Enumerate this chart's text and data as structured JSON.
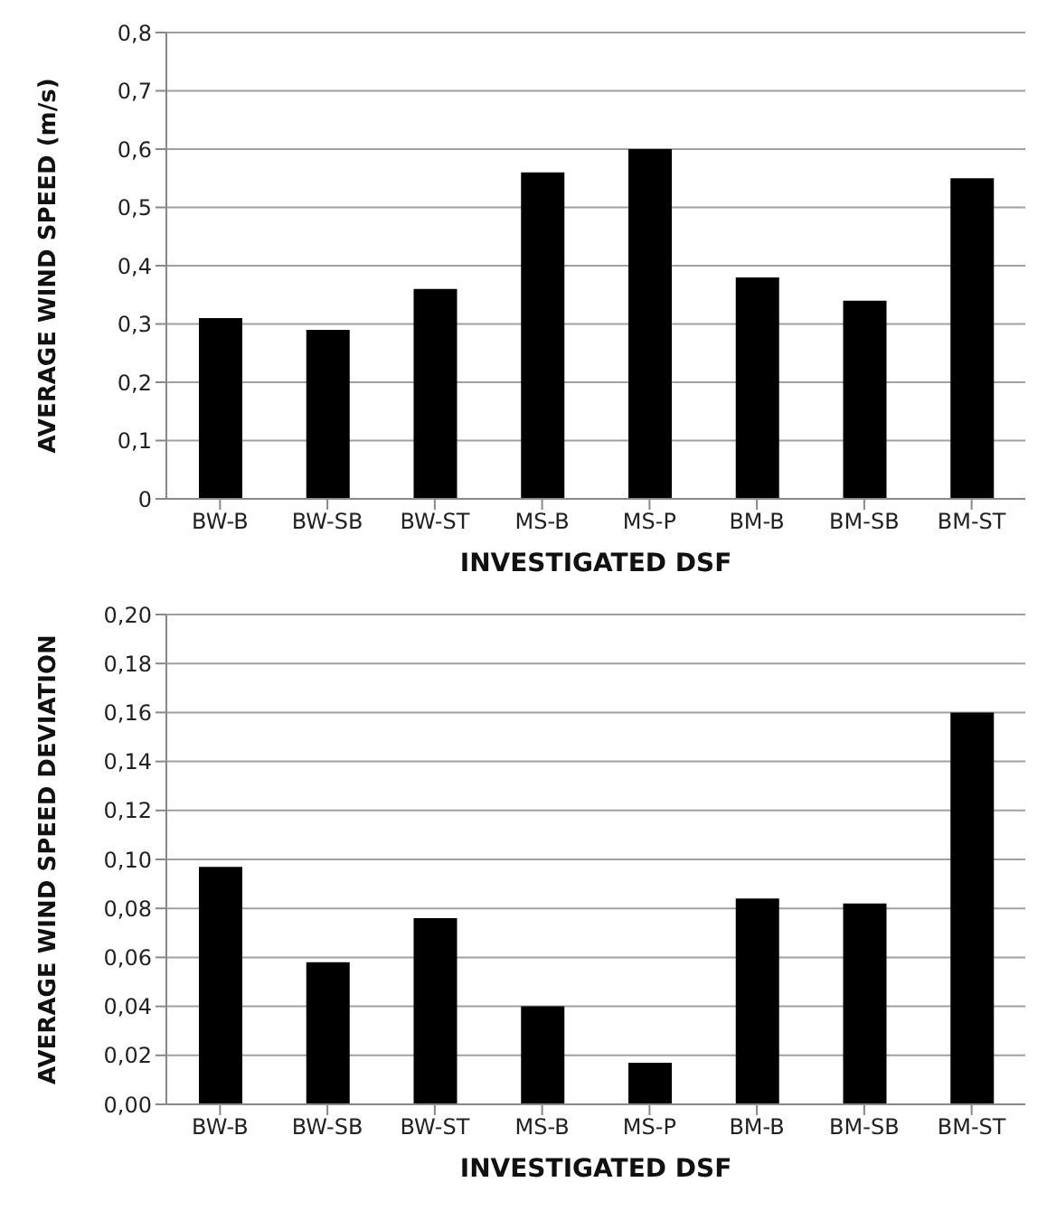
{
  "chart_data": [
    {
      "type": "bar",
      "xlabel": "INVESTIGATED DSF",
      "ylabel": "AVERAGE WIND SPEED (m/s)",
      "categories": [
        "BW-B",
        "BW-SB",
        "BW-ST",
        "MS-B",
        "MS-P",
        "BM-B",
        "BM-SB",
        "BM-ST"
      ],
      "values": [
        0.31,
        0.29,
        0.36,
        0.56,
        0.6,
        0.38,
        0.34,
        0.55
      ],
      "color": "#000000",
      "ylim": [
        0,
        0.8
      ],
      "yticks": [
        0,
        {
          "value": 0.1,
          "label": "0,1"
        },
        {
          "value": 0.2,
          "label": "0,2"
        },
        {
          "value": 0.3,
          "label": "0,3"
        },
        {
          "value": 0.4,
          "label": "0,4"
        },
        {
          "value": 0.5,
          "label": "0,5"
        },
        {
          "value": 0.6,
          "label": "0,6"
        },
        {
          "value": 0.7,
          "label": "0,7"
        },
        {
          "value": 0.8,
          "label": "0,8"
        }
      ],
      "grid": "y",
      "legend": false
    },
    {
      "type": "bar",
      "xlabel": "INVESTIGATED DSF",
      "ylabel": "AVERAGE WIND SPEED DEVIATION",
      "categories": [
        "BW-B",
        "BW-SB",
        "BW-ST",
        "MS-B",
        "MS-P",
        "BM-B",
        "BM-SB",
        "BM-ST"
      ],
      "values": [
        0.097,
        0.058,
        0.076,
        0.04,
        0.017,
        0.084,
        0.082,
        0.16
      ],
      "color": "#000000",
      "ylim": [
        0,
        0.2
      ],
      "yticks": [
        {
          "value": 0,
          "label": "0,00"
        },
        {
          "value": 0.02,
          "label": "0,02"
        },
        {
          "value": 0.04,
          "label": "0,04"
        },
        {
          "value": 0.06,
          "label": "0,06"
        },
        {
          "value": 0.08,
          "label": "0,08"
        },
        {
          "value": 0.1,
          "label": "0,10"
        },
        {
          "value": 0.12,
          "label": "0,12"
        },
        {
          "value": 0.14,
          "label": "0,14"
        },
        {
          "value": 0.16,
          "label": "0,16"
        },
        {
          "value": 0.18,
          "label": "0,18"
        },
        {
          "value": 0.2,
          "label": "0,20"
        }
      ],
      "grid": "y",
      "legend": false
    }
  ]
}
